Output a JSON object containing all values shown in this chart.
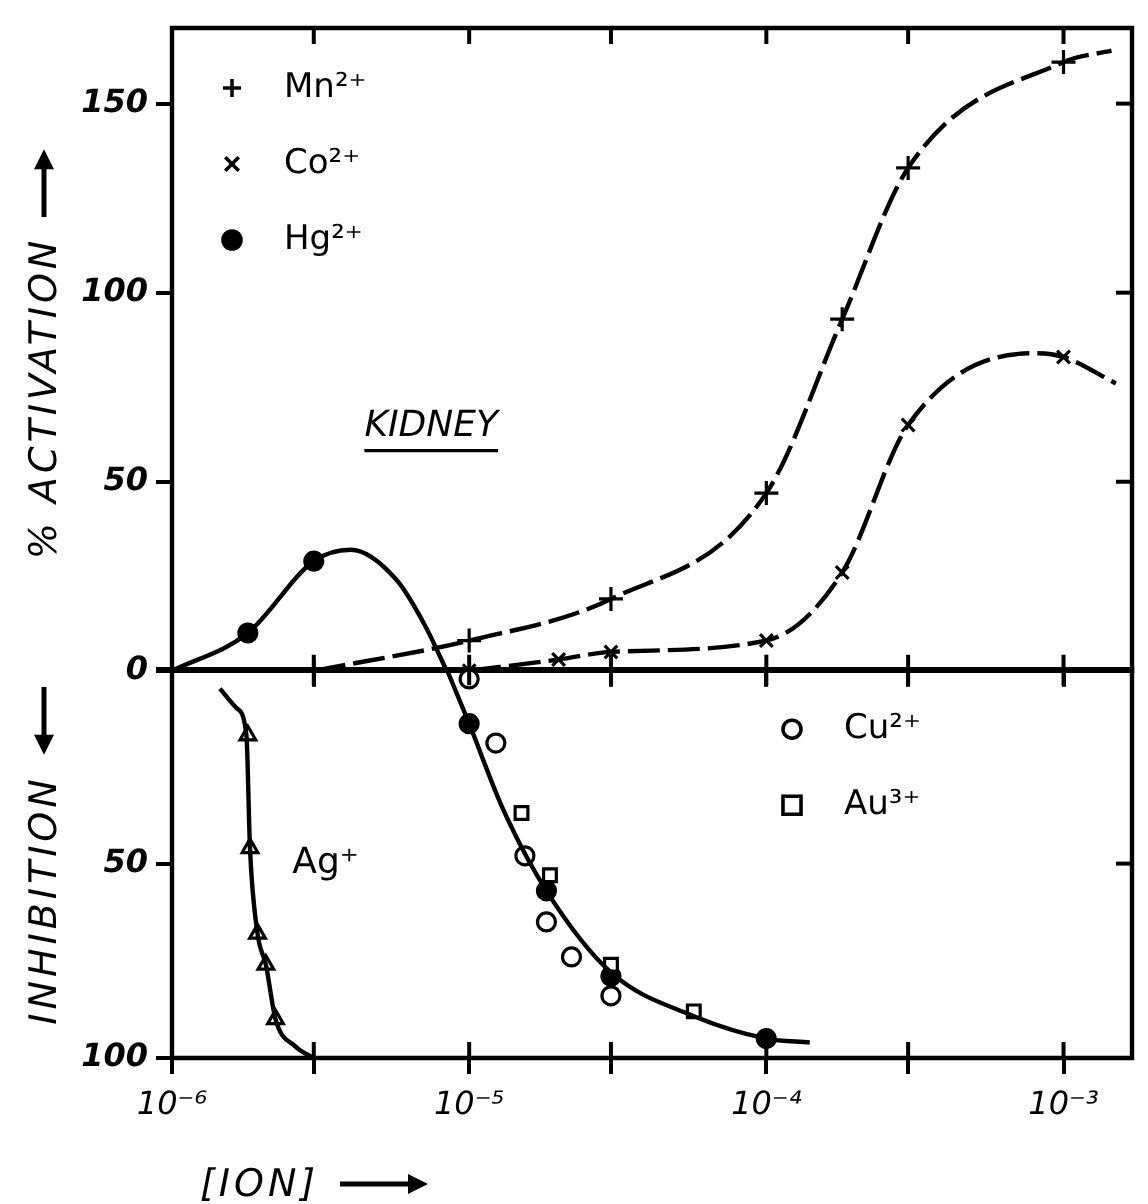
{
  "chart_data": [
    {
      "type": "line",
      "annotations": [
        "KIDNEY"
      ],
      "ylabel": "% ACTIVATION",
      "log": "x",
      "grid": false,
      "legend": "top left",
      "tick_labels": "y",
      "xlim": [
        1e-06,
        0.0017
      ],
      "xticks": [
        {
          "value": 1e-06,
          "label": null
        },
        {
          "value": 3e-06,
          "label": null
        },
        {
          "value": 1e-05,
          "label": null
        },
        {
          "value": 3e-05,
          "label": null
        },
        {
          "value": 0.0001,
          "label": null
        },
        {
          "value": 0.0003,
          "label": null
        },
        {
          "value": 0.001,
          "label": null
        }
      ],
      "ylim": [
        0,
        170
      ],
      "yticks": [
        0,
        50,
        100,
        150
      ],
      "series": [
        {
          "type": "line",
          "color": "#000000",
          "line_style": "dashed",
          "marker": "none",
          "x": [
            3e-06,
            1e-05,
            3e-05,
            0.0001,
            0.00018,
            0.0003,
            0.001,
            0.00145
          ],
          "values": [
            0,
            8,
            19,
            47,
            93,
            133,
            161,
            164
          ]
        },
        {
          "type": "line",
          "color": "#000000",
          "line_style": "dashed",
          "marker": "none",
          "x": [
            1e-05,
            2e-05,
            3e-05,
            0.0001,
            0.00018,
            0.0003,
            0.0008,
            0.001,
            0.0015
          ],
          "values": [
            0,
            3,
            5,
            8,
            26,
            65,
            84,
            83,
            76
          ]
        },
        {
          "type": "line",
          "color": "#000000",
          "line_style": "solid",
          "marker": "none",
          "x": [
            1e-06,
            1.8e-06,
            3e-06,
            4e-06,
            5.7e-06,
            7.1e-06,
            8.4e-06
          ],
          "values": [
            0,
            10,
            29,
            32,
            24,
            12,
            0
          ]
        },
        {
          "type": "scatter",
          "name": "Mn²⁺",
          "color": "#000000",
          "marker": "cross",
          "x": [
            3e-06,
            1e-05,
            3e-05,
            0.0001,
            0.00018,
            0.0003,
            0.001
          ],
          "values": [
            0,
            8,
            19,
            47,
            93,
            133,
            161
          ]
        },
        {
          "type": "scatter",
          "name": "Co²⁺",
          "color": "#000000",
          "marker": "x",
          "x": [
            1e-05,
            2e-05,
            3e-05,
            0.0001,
            0.00018,
            0.0003,
            0.001
          ],
          "values": [
            0,
            3,
            5,
            8,
            26,
            65,
            83
          ]
        },
        {
          "type": "scatter",
          "name": "Hg²⁺",
          "color": "#000000",
          "marker": "dot",
          "x": [
            1.8e-06,
            3e-06
          ],
          "values": [
            10,
            29
          ]
        }
      ]
    },
    {
      "type": "line",
      "xlabel": "[ION]",
      "ylabel": "INHIBITION",
      "log": "x",
      "grid": false,
      "legend": "top right",
      "annotations": [
        "Ag⁺"
      ],
      "xlim": [
        1e-06,
        0.0017
      ],
      "xticks": [
        {
          "value": 1e-06,
          "label": "10⁻⁶"
        },
        {
          "value": 3e-06,
          "label": null
        },
        {
          "value": 1e-05,
          "label": "10⁻⁵"
        },
        {
          "value": 3e-05,
          "label": null
        },
        {
          "value": 0.0001,
          "label": "10⁻⁴"
        },
        {
          "value": 0.0003,
          "label": null
        },
        {
          "value": 0.001,
          "label": "10⁻³"
        }
      ],
      "ylim": [
        100,
        0
      ],
      "yticks": [
        {
          "value": 0,
          "label": null
        },
        50,
        100
      ],
      "series": [
        {
          "type": "line",
          "color": "#000000",
          "line_style": "solid",
          "marker": "none",
          "x": [
            1.45e-06,
            1.65e-06,
            1.78e-06,
            1.83e-06,
            1.94e-06,
            2.07e-06,
            2.23e-06,
            2.6e-06,
            3e-06
          ],
          "values": [
            5,
            10,
            17,
            46,
            68,
            76,
            90,
            97,
            100
          ]
        },
        {
          "type": "line",
          "color": "#000000",
          "line_style": "solid",
          "marker": "none",
          "x": [
            8.4e-06,
            1e-05,
            1.3e-05,
            1.82e-05,
            3e-05,
            5.6e-05,
            0.0001,
            0.00014
          ],
          "values": [
            0,
            14,
            36,
            57,
            78,
            89,
            95,
            96
          ]
        },
        {
          "type": "scatter",
          "color": "#000000",
          "marker": "triangle",
          "x": [
            1.8e-06,
            1.83e-06,
            1.94e-06,
            2.07e-06,
            2.23e-06
          ],
          "values": [
            17,
            46,
            68,
            76,
            90
          ]
        },
        {
          "type": "scatter",
          "name": "Cu²⁺",
          "color": "#000000",
          "marker": "circle",
          "x": [
            1e-05,
            1.23e-05,
            1.54e-05,
            1.82e-05,
            2.21e-05,
            3e-05
          ],
          "values": [
            2.5,
            19,
            48,
            65,
            74,
            84
          ]
        },
        {
          "type": "scatter",
          "name": "Au³⁺",
          "color": "#000000",
          "marker": "square",
          "x": [
            1.5e-05,
            1.87e-05,
            3e-05,
            5.7e-05
          ],
          "values": [
            37,
            53,
            76,
            88
          ]
        },
        {
          "type": "scatter",
          "color": "#000000",
          "marker": "dot",
          "x": [
            1e-05,
            1.82e-05,
            3e-05,
            0.0001
          ],
          "values": [
            14,
            57,
            79,
            95
          ]
        }
      ]
    }
  ]
}
